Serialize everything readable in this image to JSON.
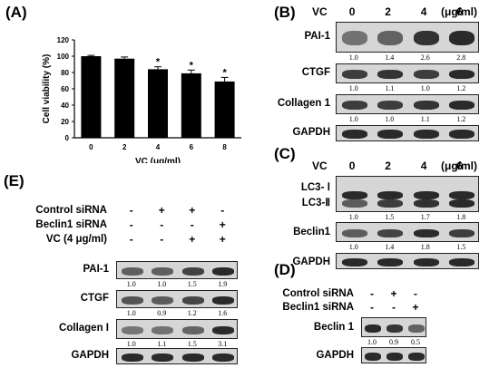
{
  "panels": {
    "A": "(A)",
    "B": "(B)",
    "C": "(C)",
    "D": "(D)",
    "E": "(E)"
  },
  "chart_data": {
    "type": "bar",
    "categories": [
      "0",
      "2",
      "4",
      "6",
      "8"
    ],
    "values": [
      100,
      97,
      84,
      79,
      69
    ],
    "errors": [
      1,
      2,
      3,
      4,
      5
    ],
    "significant": [
      "",
      "",
      "*",
      "*",
      "*"
    ],
    "xlabel": "VC (μg/ml)",
    "ylabel": "Cell viability (%)",
    "ylim": [
      0,
      120
    ],
    "yticks": [
      "0",
      "20",
      "40",
      "60",
      "80",
      "100",
      "120"
    ],
    "bar_color": "#000000"
  },
  "B": {
    "vc_label": "VC",
    "conc": [
      "0",
      "2",
      "4",
      "6"
    ],
    "unit": "(μg/ml)",
    "rows": [
      {
        "label": "PAI-1",
        "quant": [
          "1.0",
          "1.4",
          "2.6",
          "2.8"
        ]
      },
      {
        "label": "CTGF",
        "quant": [
          "1.0",
          "1.1",
          "1.0",
          "1.2"
        ]
      },
      {
        "label": "Collagen 1",
        "quant": [
          "1.0",
          "1.0",
          "1.1",
          "1.2"
        ]
      },
      {
        "label": "GAPDH",
        "quant": []
      }
    ]
  },
  "C": {
    "vc_label": "VC",
    "conc": [
      "0",
      "2",
      "4",
      "6"
    ],
    "unit": "(μg/ml)",
    "lc3_1": "LC3- Ⅰ",
    "lc3_2": "LC3-Ⅱ",
    "lc3_quant": [
      "1.0",
      "1.5",
      "1.7",
      "1.8"
    ],
    "beclin_label": "Beclin1",
    "beclin_quant": [
      "1.0",
      "1.4",
      "1.8",
      "1.5"
    ],
    "gapdh_label": "GAPDH"
  },
  "D": {
    "conditions": [
      {
        "label": "Control siRNA",
        "signs": [
          "-",
          "+",
          "-"
        ]
      },
      {
        "label": "Beclin1 siRNA",
        "signs": [
          "-",
          "-",
          "+"
        ]
      }
    ],
    "beclin_label": "Beclin 1",
    "beclin_quant": [
      "1.0",
      "0.9",
      "0.5"
    ],
    "gapdh_label": "GAPDH"
  },
  "E": {
    "conditions": [
      {
        "label": "Control siRNA",
        "signs": [
          "-",
          "+",
          "+",
          "-"
        ]
      },
      {
        "label": "Beclin1 siRNA",
        "signs": [
          "-",
          "-",
          "-",
          "+"
        ]
      },
      {
        "label": "VC (4 μg/ml)",
        "signs": [
          "-",
          "-",
          "+",
          "+"
        ]
      }
    ],
    "rows": [
      {
        "label": "PAI-1",
        "quant": [
          "1.0",
          "1.0",
          "1.5",
          "1.9"
        ]
      },
      {
        "label": "CTGF",
        "quant": [
          "1.0",
          "0.9",
          "1.2",
          "1.6"
        ]
      },
      {
        "label": "Collagen I",
        "quant": [
          "1.0",
          "1.1",
          "1.5",
          "3.1"
        ]
      },
      {
        "label": "GAPDH",
        "quant": []
      }
    ]
  }
}
